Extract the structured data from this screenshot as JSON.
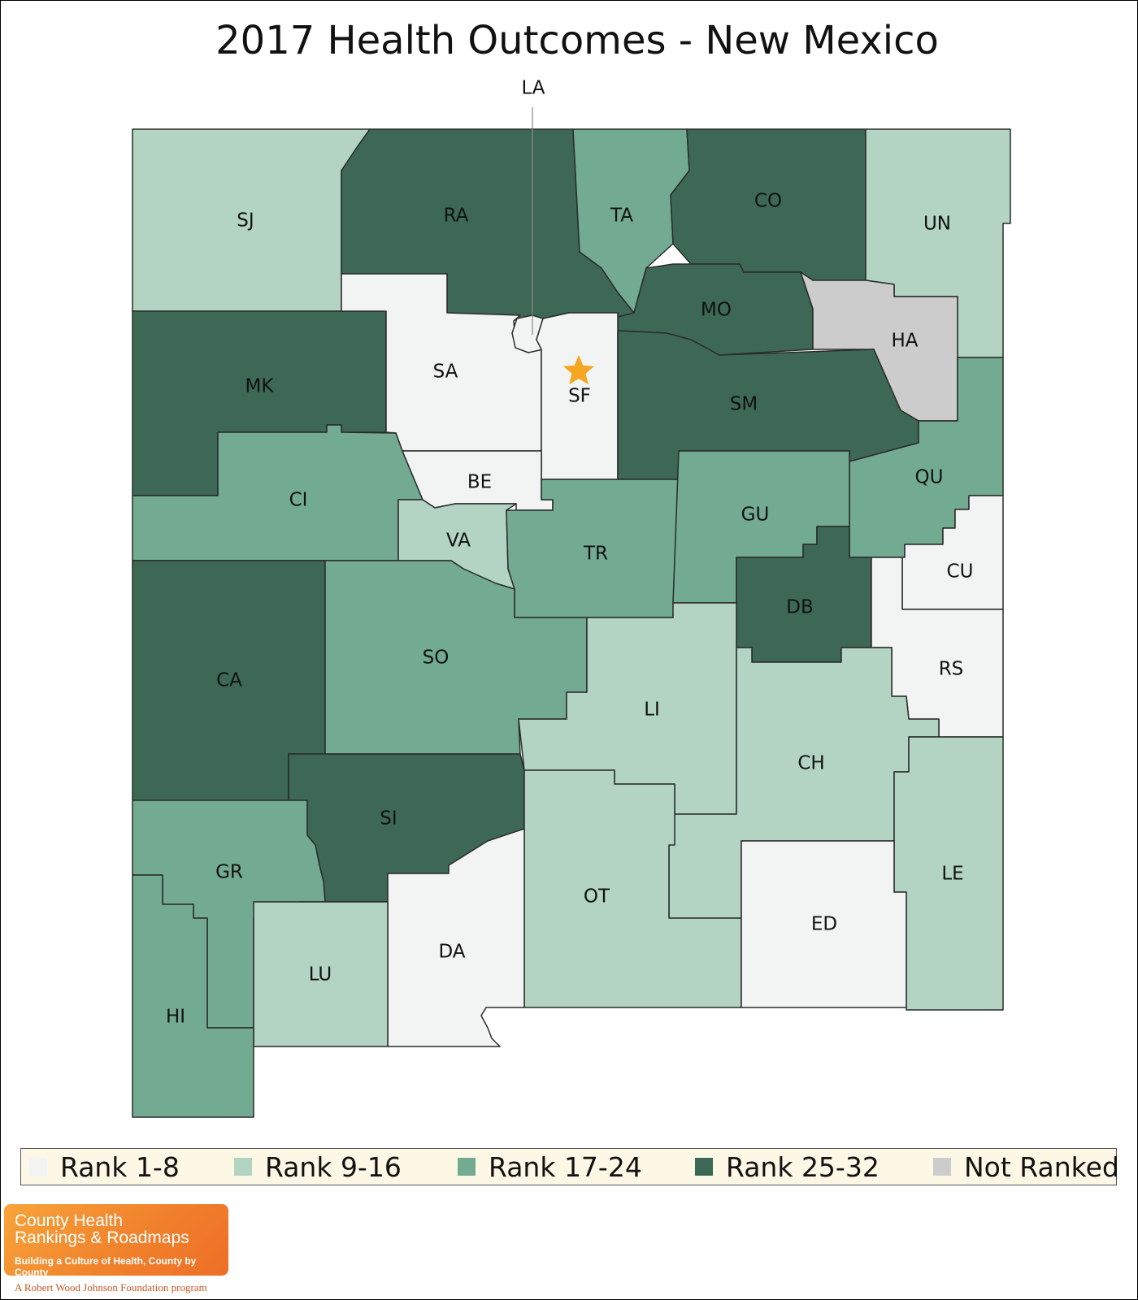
{
  "title": "2017 Health Outcomes - New Mexico",
  "colors": {
    "rank_1_8": "#f1f4f2",
    "rank_9_16": "#b3d3c3",
    "rank_17_24": "#72ab91",
    "rank_25_32": "#3d6855",
    "not_ranked": "#cccccc",
    "state_star": "#f5a623"
  },
  "legend": [
    {
      "label": "Rank 1-8",
      "color": "#f1f4f2"
    },
    {
      "label": "Rank 9-16",
      "color": "#b3d3c3"
    },
    {
      "label": "Rank 17-24",
      "color": "#72ab91"
    },
    {
      "label": "Rank 25-32",
      "color": "#3d6855"
    },
    {
      "label": "Not Ranked",
      "color": "#cccccc"
    }
  ],
  "counties": [
    {
      "abbr": "SJ",
      "rank_group": "Rank 9-16"
    },
    {
      "abbr": "RA",
      "rank_group": "Rank 25-32"
    },
    {
      "abbr": "TA",
      "rank_group": "Rank 17-24"
    },
    {
      "abbr": "CO",
      "rank_group": "Rank 25-32"
    },
    {
      "abbr": "UN",
      "rank_group": "Rank 9-16"
    },
    {
      "abbr": "MO",
      "rank_group": "Rank 25-32"
    },
    {
      "abbr": "HA",
      "rank_group": "Not Ranked"
    },
    {
      "abbr": "MK",
      "rank_group": "Rank 25-32"
    },
    {
      "abbr": "SA",
      "rank_group": "Rank 1-8"
    },
    {
      "abbr": "LA",
      "rank_group": "Rank 1-8"
    },
    {
      "abbr": "SF",
      "rank_group": "Rank 1-8"
    },
    {
      "abbr": "SM",
      "rank_group": "Rank 25-32"
    },
    {
      "abbr": "QU",
      "rank_group": "Rank 17-24"
    },
    {
      "abbr": "CI",
      "rank_group": "Rank 17-24"
    },
    {
      "abbr": "BE",
      "rank_group": "Rank 1-8"
    },
    {
      "abbr": "VA",
      "rank_group": "Rank 9-16"
    },
    {
      "abbr": "TR",
      "rank_group": "Rank 17-24"
    },
    {
      "abbr": "GU",
      "rank_group": "Rank 17-24"
    },
    {
      "abbr": "DB",
      "rank_group": "Rank 25-32"
    },
    {
      "abbr": "CU",
      "rank_group": "Rank 1-8"
    },
    {
      "abbr": "RS",
      "rank_group": "Rank 1-8"
    },
    {
      "abbr": "CA",
      "rank_group": "Rank 25-32"
    },
    {
      "abbr": "SO",
      "rank_group": "Rank 17-24"
    },
    {
      "abbr": "LI",
      "rank_group": "Rank 9-16"
    },
    {
      "abbr": "CH",
      "rank_group": "Rank 9-16"
    },
    {
      "abbr": "SI",
      "rank_group": "Rank 25-32"
    },
    {
      "abbr": "GR",
      "rank_group": "Rank 17-24"
    },
    {
      "abbr": "LE",
      "rank_group": "Rank 9-16"
    },
    {
      "abbr": "OT",
      "rank_group": "Rank 9-16"
    },
    {
      "abbr": "ED",
      "rank_group": "Rank 1-8"
    },
    {
      "abbr": "DA",
      "rank_group": "Rank 1-8"
    },
    {
      "abbr": "LU",
      "rank_group": "Rank 9-16"
    },
    {
      "abbr": "HI",
      "rank_group": "Rank 17-24"
    }
  ],
  "logo": {
    "line1": "County Health",
    "line2": "Rankings & Roadmaps",
    "tagline": "Building a Culture of Health, County by County",
    "foundation": "A Robert Wood Johnson Foundation program"
  }
}
